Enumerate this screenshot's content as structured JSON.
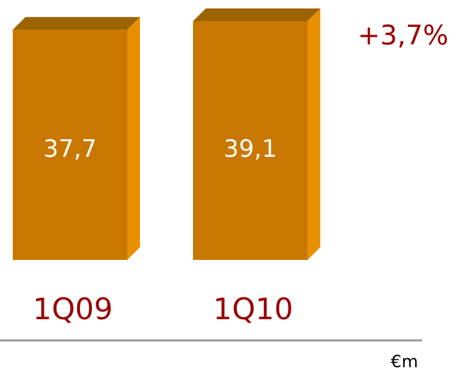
{
  "chart_data": {
    "type": "bar",
    "categories": [
      "1Q09",
      "1Q10"
    ],
    "values": [
      37.7,
      39.1
    ],
    "value_labels": [
      "37,7",
      "39,1"
    ],
    "change_label": "+3,7%",
    "unit": "€m",
    "style": "3d",
    "colors": {
      "front": "#C87800",
      "side": "#E89000",
      "top": "#9C6400",
      "text_accent": "#990000",
      "baseline": "#999999"
    }
  }
}
